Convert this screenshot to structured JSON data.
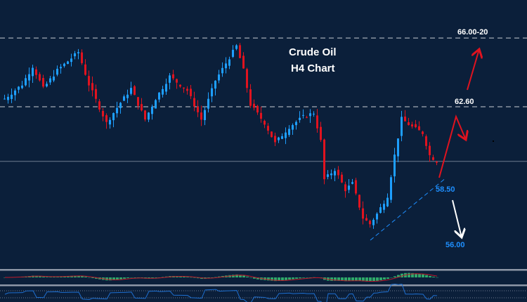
{
  "chart_data": {
    "type": "candlestick",
    "title": "Crude Oil",
    "subtitle": "H4 Chart",
    "grid": false,
    "colors": {
      "background": "#0b1f3a",
      "up": "#1e9fff",
      "down": "#e0131f",
      "level_line": "#c8ccd4",
      "trendline": "#1e8fff",
      "macd_hist": "#2fa86a",
      "macd_signal": "#c0182a",
      "rsi": "#1e6fd0"
    },
    "price_path": {
      "bar_index": [
        0,
        5,
        8,
        11,
        15,
        21,
        24,
        29,
        33,
        36,
        40,
        43,
        47,
        52,
        56,
        60,
        63,
        66,
        68,
        70,
        74,
        77,
        81,
        85,
        88,
        90,
        91,
        94,
        97,
        99,
        102,
        104,
        106,
        109,
        111,
        113,
        116,
        119,
        121,
        123
      ],
      "close": [
        63.0,
        63.7,
        64.6,
        63.5,
        64.4,
        65.3,
        63.7,
        61.8,
        62.8,
        63.5,
        61.97,
        63.0,
        64.1,
        63.4,
        61.97,
        63.9,
        64.75,
        65.6,
        64.4,
        62.7,
        61.8,
        60.8,
        61.6,
        62.1,
        62.3,
        60.9,
        59.0,
        59.5,
        58.5,
        58.8,
        57.1,
        56.8,
        57.3,
        58.2,
        60.2,
        62.0,
        61.6,
        61.3,
        60.2,
        59.9
      ]
    },
    "current_price": 59.9,
    "levels": [
      {
        "label": "66.00-20",
        "price": 66.0,
        "style": "dashed"
      },
      {
        "label": "62.60",
        "price": 62.6,
        "style": "dashed"
      },
      {
        "label": "58.50",
        "price": 58.5,
        "style": "trendline-support"
      },
      {
        "label": "56.00",
        "price": 56.0,
        "style": "target"
      }
    ],
    "scenarios": [
      {
        "name": "bullish",
        "path_prices": [
          58.5,
          62.6,
          61.5
        ],
        "color": "#e0131f"
      },
      {
        "name": "bullish-extension",
        "path_prices": [
          64.3,
          65.8
        ],
        "color": "#e0131f"
      },
      {
        "name": "bearish",
        "path_prices": [
          57.9,
          56.3
        ],
        "color": "#ffffff"
      }
    ]
  }
}
